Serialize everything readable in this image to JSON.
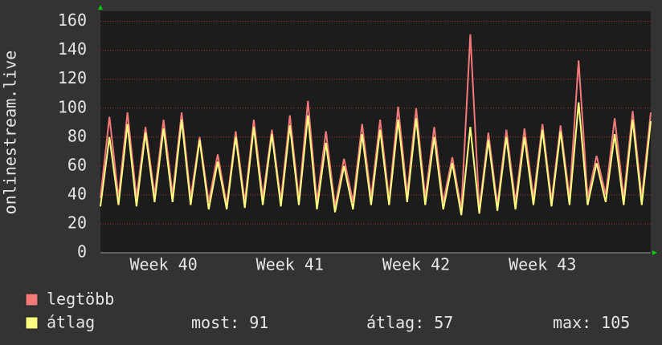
{
  "chart_data": {
    "type": "line",
    "y_label": "onlinestream.live",
    "categories": [
      null,
      null,
      null,
      null,
      null,
      null,
      null,
      "Week 40",
      null,
      null,
      null,
      null,
      null,
      null,
      null,
      null,
      null,
      null,
      null,
      null,
      null,
      "Week 41",
      null,
      null,
      null,
      null,
      null,
      null,
      null,
      null,
      null,
      null,
      null,
      null,
      null,
      "Week 42",
      null,
      null,
      null,
      null,
      null,
      null,
      null,
      null,
      null,
      null,
      null,
      null,
      null,
      "Week 43",
      null,
      null,
      null,
      null,
      null,
      null,
      null,
      null,
      null,
      null,
      null,
      null
    ],
    "series": [
      {
        "name": "legtöbb",
        "color": "#f47a7a",
        "values": [
          38,
          94,
          38,
          97,
          38,
          87,
          40,
          92,
          40,
          97,
          38,
          80,
          35,
          68,
          33,
          84,
          35,
          92,
          38,
          85,
          36,
          95,
          37,
          105,
          35,
          84,
          32,
          65,
          35,
          89,
          38,
          92,
          37,
          101,
          40,
          100,
          38,
          87,
          35,
          66,
          30,
          151,
          30,
          83,
          33,
          85,
          35,
          86,
          38,
          89,
          36,
          88,
          38,
          133,
          38,
          67,
          40,
          93,
          38,
          98,
          38,
          97
        ]
      },
      {
        "name": "átlag",
        "color": "#ffff80",
        "values": [
          32,
          80,
          33,
          89,
          32,
          83,
          35,
          86,
          35,
          92,
          33,
          78,
          30,
          63,
          30,
          80,
          31,
          87,
          33,
          82,
          32,
          88,
          33,
          95,
          30,
          76,
          28,
          60,
          30,
          82,
          33,
          85,
          33,
          92,
          35,
          93,
          33,
          80,
          30,
          62,
          26,
          87,
          27,
          78,
          29,
          80,
          30,
          80,
          33,
          85,
          32,
          84,
          33,
          104,
          33,
          62,
          35,
          82,
          33,
          92,
          33,
          91
        ]
      }
    ],
    "ylim": [
      0,
      167
    ],
    "yticks": [
      0,
      20,
      40,
      60,
      80,
      100,
      120,
      140,
      160
    ],
    "grid": true,
    "stats": [
      {
        "label": "most:",
        "value": 91
      },
      {
        "label": "átlag:",
        "value": 57
      },
      {
        "label": "max:",
        "value": 105
      }
    ]
  }
}
